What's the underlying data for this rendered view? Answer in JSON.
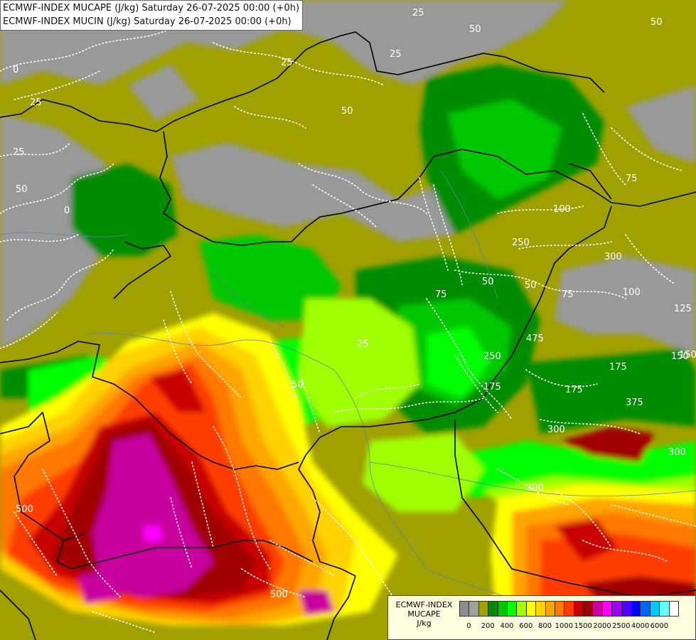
{
  "title": {
    "line1": "ECMWF-INDEX MUCAPE (J/kg) Saturday 26-07-2025 00:00 (+0h)",
    "line2": "ECMWF-INDEX MUCIN (J/kg) Saturday 26-07-2025 00:00 (+0h)"
  },
  "legend": {
    "line1": "ECMWF-INDEX",
    "line2": "MUCAPE",
    "line3": "J/kg",
    "colors": [
      "#8c8c8c",
      "#a0a0a0",
      "#a0a000",
      "#008c00",
      "#00c800",
      "#00ff00",
      "#a0ff00",
      "#ffff00",
      "#ffd200",
      "#ffa500",
      "#ff7800",
      "#ff3c00",
      "#c80000",
      "#a00000",
      "#c8009e",
      "#ff00ff",
      "#a000ff",
      "#5000ff",
      "#0000ff",
      "#0064ff",
      "#00c8ff",
      "#64ffff",
      "#ffffff"
    ],
    "ticks": [
      "0",
      "200",
      "400",
      "600",
      "800",
      "1000",
      "1500",
      "2000",
      "2500",
      "4000",
      "6000"
    ]
  },
  "map": {
    "cin_labels": [
      "25",
      "50",
      "0",
      "25",
      "25",
      "50",
      "25",
      "50",
      "0",
      "25",
      "50",
      "75",
      "100",
      "250",
      "50",
      "75",
      "100",
      "125",
      "250",
      "175",
      "175",
      "300",
      "300",
      "25",
      "50",
      "75",
      "175",
      "50",
      "300",
      "500",
      "500",
      "150",
      "300",
      "375",
      "475",
      "150"
    ]
  }
}
